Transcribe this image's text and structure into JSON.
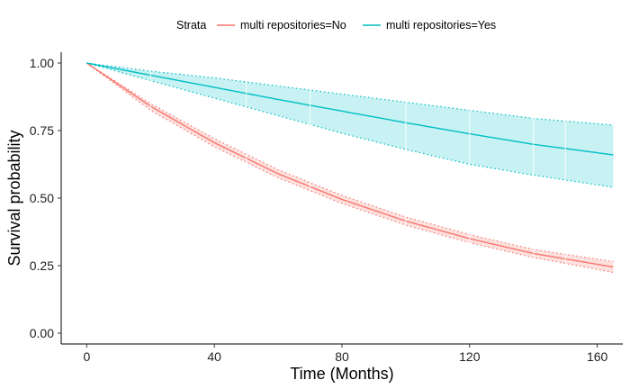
{
  "chart_data": {
    "type": "line",
    "subtype": "kaplan-meier survival curve with confidence bands",
    "xlabel": "Time (Months)",
    "ylabel": "Survival probability",
    "xlim": [
      -8,
      168
    ],
    "ylim": [
      -0.04,
      1.04
    ],
    "x_ticks": [
      0,
      40,
      80,
      120,
      160
    ],
    "x_tick_labels": [
      "0",
      "40",
      "80",
      "120",
      "160"
    ],
    "y_ticks": [
      0,
      0.25,
      0.5,
      0.75,
      1
    ],
    "y_tick_labels": [
      "0.00",
      "0.25",
      "0.50",
      "0.75",
      "1.00"
    ],
    "grid": false,
    "legend": {
      "title": "Strata",
      "position": "top",
      "entries": [
        "multi repositories=No",
        "multi repositories=Yes"
      ]
    },
    "series": [
      {
        "name": "multi repositories=No",
        "color": "#F8766D",
        "x": [
          0,
          20,
          40,
          60,
          80,
          100,
          120,
          140,
          165
        ],
        "values": [
          1.0,
          0.84,
          0.705,
          0.59,
          0.495,
          0.415,
          0.35,
          0.295,
          0.245
        ],
        "ci_lower": [
          1.0,
          0.825,
          0.69,
          0.575,
          0.48,
          0.4,
          0.335,
          0.28,
          0.225
        ],
        "ci_upper": [
          1.0,
          0.85,
          0.72,
          0.605,
          0.51,
          0.43,
          0.365,
          0.31,
          0.265
        ],
        "censor_times": [
          20,
          50,
          70,
          100,
          120,
          140,
          150
        ]
      },
      {
        "name": "multi repositories=Yes",
        "color": "#00BFC4",
        "x": [
          0,
          20,
          40,
          60,
          80,
          100,
          120,
          140,
          165
        ],
        "values": [
          1.0,
          0.955,
          0.91,
          0.865,
          0.822,
          0.779,
          0.738,
          0.699,
          0.66
        ],
        "ci_lower": [
          1.0,
          0.935,
          0.87,
          0.805,
          0.74,
          0.68,
          0.625,
          0.585,
          0.54
        ],
        "ci_upper": [
          1.0,
          0.97,
          0.945,
          0.915,
          0.885,
          0.855,
          0.825,
          0.795,
          0.77
        ],
        "censor_times": [
          20,
          50,
          70,
          100,
          120,
          140,
          150
        ]
      }
    ]
  }
}
